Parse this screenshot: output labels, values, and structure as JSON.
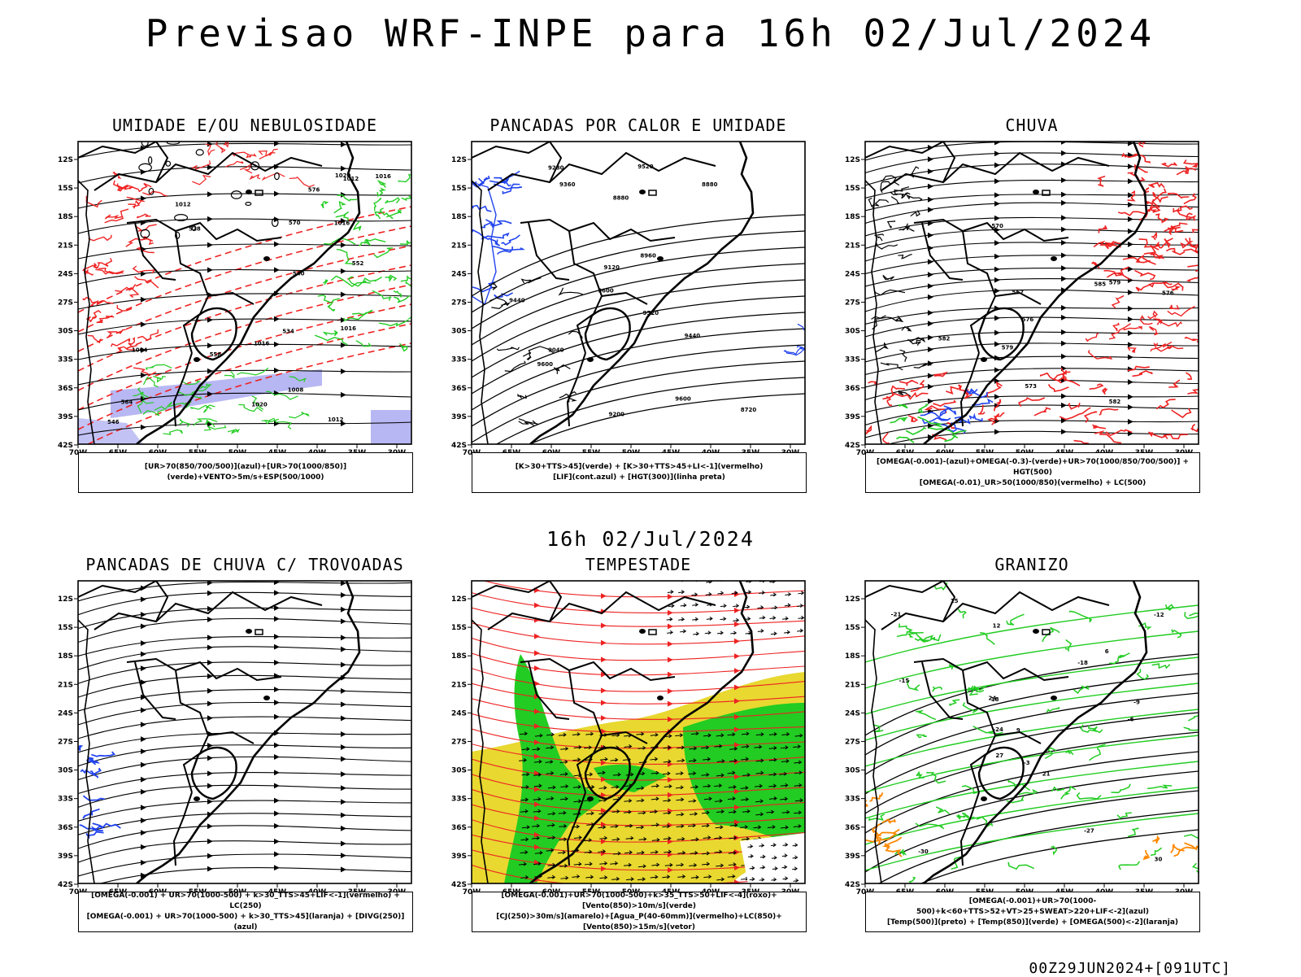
{
  "title": "Previsao WRF-INPE  para 16h 02/Jul/2024",
  "subtitle": "16h 02/Jul/2024",
  "footer": "00Z29JUN2024+[091UTC]",
  "lat_ticks": [
    "12S",
    "15S",
    "18S",
    "21S",
    "24S",
    "27S",
    "30S",
    "33S",
    "36S",
    "39S",
    "42S"
  ],
  "lon_ticks": [
    "70W",
    "65W",
    "60W",
    "55W",
    "50W",
    "45W",
    "40W",
    "35W",
    "30W"
  ],
  "colors": {
    "red": "#ee2222",
    "green": "#22cc22",
    "blue": "#2244ee",
    "lightblue": "#9999ee",
    "yellow": "#e8d830",
    "orange": "#ff8800",
    "purple": "#aa22aa"
  },
  "panels": [
    {
      "id": "umidade",
      "title": "UMIDADE E/OU NEBULOSIDADE",
      "legend": [
        "[UR>70(850/700/500)](azul)+[UR>70(1000/850)](verde)+VENTO>5m/s+ESP(500/1000)"
      ],
      "labels": [
        "1012",
        "1012",
        "1016",
        "1016",
        "1016",
        "1020",
        "1020",
        "1012",
        "1008",
        "1004",
        "1016",
        "570",
        "564",
        "558",
        "552",
        "546",
        "540",
        "534",
        "528",
        "576"
      ]
    },
    {
      "id": "pancadas",
      "title": "PANCADAS POR CALOR E UMIDADE",
      "legend": [
        "[K>30+TTS>45](verde) + [K>30+TTS>45+LI<-1](vermelho)",
        "[LIF](cont.azul) + [HGT(300)](linha preta)"
      ],
      "labels": [
        "9600",
        "9600",
        "9520",
        "9440",
        "9360",
        "9280",
        "9200",
        "9120",
        "9040",
        "8960",
        "8880",
        "8720",
        "8880",
        "9440",
        "9520",
        "9600"
      ]
    },
    {
      "id": "chuva",
      "title": "CHUVA",
      "legend": [
        "[OMEGA(-0.001)-(azul)+OMEGA(-0.3)-(verde)+UR>70(1000/850/700/500)] + HGT(500)",
        "[OMEGA(-0.01)_UR>50(1000/850)(vermelho) + LC(500)"
      ],
      "labels": [
        "585",
        "582",
        "579",
        "576",
        "573",
        "570",
        "567",
        "582",
        "579",
        "576"
      ]
    },
    {
      "id": "trovoadas",
      "title": "PANCADAS DE CHUVA C/ TROVOADAS",
      "legend": [
        "[OMEGA(-0.001) + UR>70(1000-500) + k>30_TTS>45+LIF<-1](vermelho) + LC(250)",
        "[OMEGA(-0.001) + UR>70(1000-500) + k>30_TTS>45](laranja) + [DIVG(250)](azul)"
      ],
      "labels": []
    },
    {
      "id": "tempestade",
      "title": "TEMPESTADE",
      "legend": [
        "[OMEGA(-0.001)+UR>70(1000-500)+k>35_TTS>50+LIF<-4](roxo)+[Vento(850)>10m/s](verde)",
        "[CJ(250)>30m/s](amarelo)+[Agua_P(40-60mm)](vermelho)+LC(850)+[Vento(850)>15m/s](vetor)"
      ],
      "labels": []
    },
    {
      "id": "granizo",
      "title": "GRANIZO",
      "legend": [
        "[OMEGA(-0.001)+UR>70(1000-500)+k<60+TTS>52+VT>25+SWEAT>220+LIF<-2](azul)",
        "[Temp(500)](preto) + [Temp(850)](verde) + [OMEGA(500)<-2](laranja)"
      ],
      "labels": [
        "6",
        "9",
        "12",
        "15",
        "18",
        "21",
        "24",
        "27",
        "30",
        "-3",
        "-6",
        "-9",
        "-12",
        "-15",
        "-18",
        "-21",
        "-24",
        "-27",
        "-30"
      ]
    }
  ]
}
